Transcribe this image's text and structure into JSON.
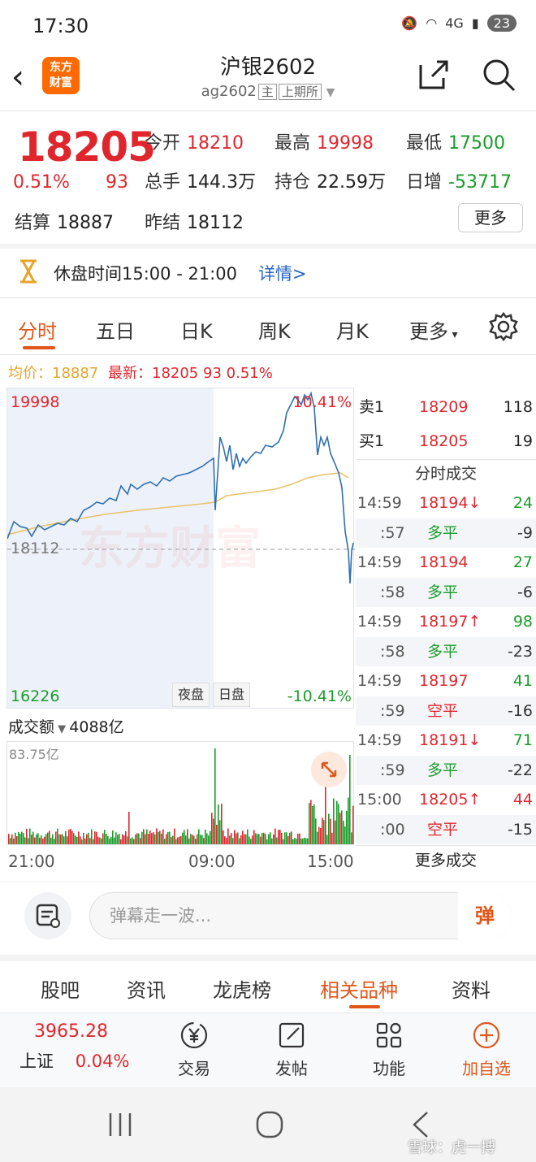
{
  "status_bar": {
    "time": "17:30",
    "signal": "4G",
    "battery": "23"
  },
  "header": {
    "logo_line1": "东方",
    "logo_line2": "财富",
    "title": "沪银2602",
    "code": "ag2602",
    "tag_main": "主",
    "exchange": "上期所"
  },
  "quote": {
    "price": "18205",
    "change_pct": "0.51%",
    "change_abs": "93",
    "open_label": "今开",
    "open": "18210",
    "high_label": "最高",
    "high": "19998",
    "low_label": "最低",
    "low": "17500",
    "volume_label": "总手",
    "volume": "144.3万",
    "oi_label": "持仓",
    "oi": "22.59万",
    "daily_inc_label": "日增",
    "daily_inc": "-53717",
    "settle_label": "结算",
    "settle": "18887",
    "prev_settle_label": "昨结",
    "prev_settle": "18112",
    "more_label": "更多"
  },
  "notice": {
    "text": "休盘时间15:00 - 21:00",
    "link": "详情>"
  },
  "tabs": {
    "t1": "分时",
    "t2": "五日",
    "t3": "日K",
    "t4": "周K",
    "t5": "月K",
    "t6": "更多"
  },
  "avg_line": {
    "avg_label": "均价：",
    "avg": "18887",
    "latest_label": "最新：",
    "latest": "18205",
    "chg": "93",
    "pct": "0.51%"
  },
  "chart": {
    "y_top": "19998",
    "y_ref": "18112",
    "y_bottom": "16226",
    "pct_top": "10.41%",
    "pct_bottom": "-10.41%",
    "watermark": "东方财富",
    "night_label": "夜盘",
    "day_label": "日盘",
    "vol_label": "成交额",
    "vol_total": "4088亿",
    "vol_max": "83.75亿",
    "x_labels": [
      "21:00",
      "09:00",
      "15:00"
    ]
  },
  "book": {
    "ask_label": "卖1",
    "ask_price": "18209",
    "ask_vol": "118",
    "bid_label": "买1",
    "bid_price": "18205",
    "bid_vol": "19",
    "ticks_title": "分时成交",
    "ticks": [
      {
        "t": "14:59",
        "p": "18194↓",
        "v": "24"
      },
      {
        "t": ":57",
        "p": "多平",
        "v": "-9"
      },
      {
        "t": "14:59",
        "p": "18194",
        "v": "27"
      },
      {
        "t": ":58",
        "p": "多平",
        "v": "-6"
      },
      {
        "t": "14:59",
        "p": "18197↑",
        "v": "98"
      },
      {
        "t": ":58",
        "p": "多平",
        "v": "-23"
      },
      {
        "t": "14:59",
        "p": "18197",
        "v": "41"
      },
      {
        "t": ":59",
        "p": "空平",
        "v": "-16"
      },
      {
        "t": "14:59",
        "p": "18191↓",
        "v": "71"
      },
      {
        "t": ":59",
        "p": "多平",
        "v": "-22"
      },
      {
        "t": "15:00",
        "p": "18205↑",
        "v": "44"
      },
      {
        "t": ":00",
        "p": "空平",
        "v": "-15"
      }
    ],
    "more": "更多成交"
  },
  "comment": {
    "placeholder": "弹幕走一波...",
    "send": "弹"
  },
  "info_tabs": {
    "a": "股吧",
    "b": "资讯",
    "c": "龙虎榜",
    "d": "相关品种",
    "e": "资料"
  },
  "bottom": {
    "index_value": "3965.28",
    "index_name": "上证",
    "index_pct": "0.04%",
    "trade": "交易",
    "post": "发帖",
    "func": "功能",
    "add": "加自选"
  },
  "watermark_corner": "雪球：虎一搏"
}
